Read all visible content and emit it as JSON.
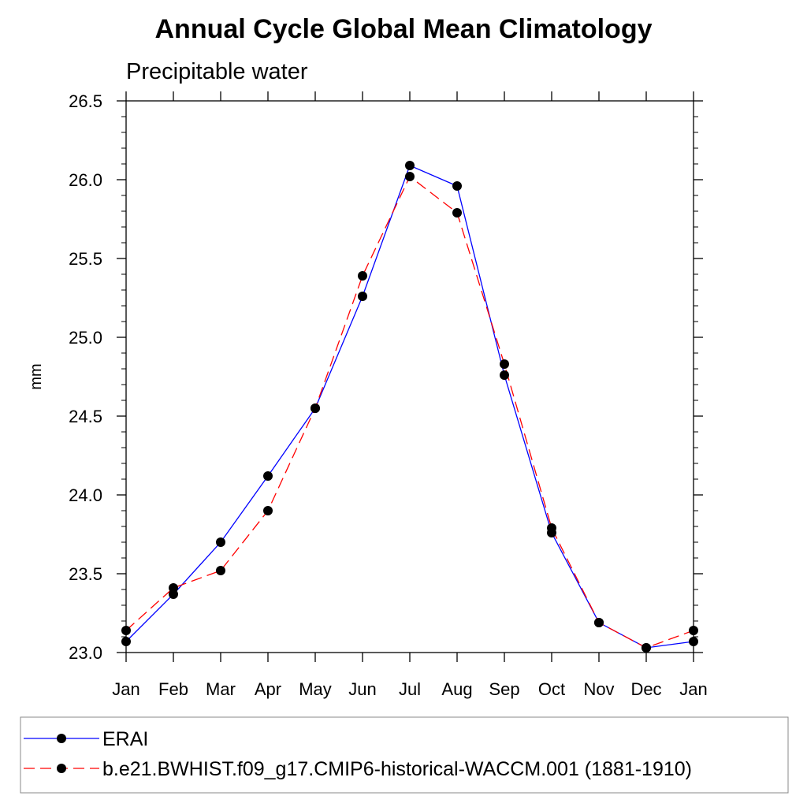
{
  "chart_data": {
    "type": "line",
    "title": "Annual Cycle Global Mean Climatology",
    "subtitle": "Precipitable water",
    "xlabel": "",
    "ylabel": "mm",
    "categories": [
      "Jan",
      "Feb",
      "Mar",
      "Apr",
      "May",
      "Jun",
      "Jul",
      "Aug",
      "Sep",
      "Oct",
      "Nov",
      "Dec",
      "Jan"
    ],
    "ylim": [
      23.0,
      26.5
    ],
    "yticks": [
      "23.0",
      "23.5",
      "24.0",
      "24.5",
      "25.0",
      "25.5",
      "26.0",
      "26.5"
    ],
    "y_minor_step": 0.1,
    "grid": false,
    "legend_position": "bottom",
    "series": [
      {
        "name": "ERAI",
        "color": "#0000ff",
        "line_style": "solid",
        "marker": "filled-circle",
        "values": [
          23.07,
          23.37,
          23.7,
          24.12,
          24.55,
          25.26,
          26.09,
          25.96,
          24.76,
          23.76,
          23.19,
          23.03,
          23.07
        ]
      },
      {
        "name": "b.e21.BWHIST.f09_g17.CMIP6-historical-WACCM.001 (1881-1910)",
        "color": "#ff0000",
        "line_style": "dashed",
        "marker": "filled-circle",
        "values": [
          23.14,
          23.41,
          23.52,
          23.9,
          24.55,
          25.39,
          26.02,
          25.79,
          24.83,
          23.79,
          23.19,
          23.03,
          23.14
        ]
      }
    ]
  }
}
